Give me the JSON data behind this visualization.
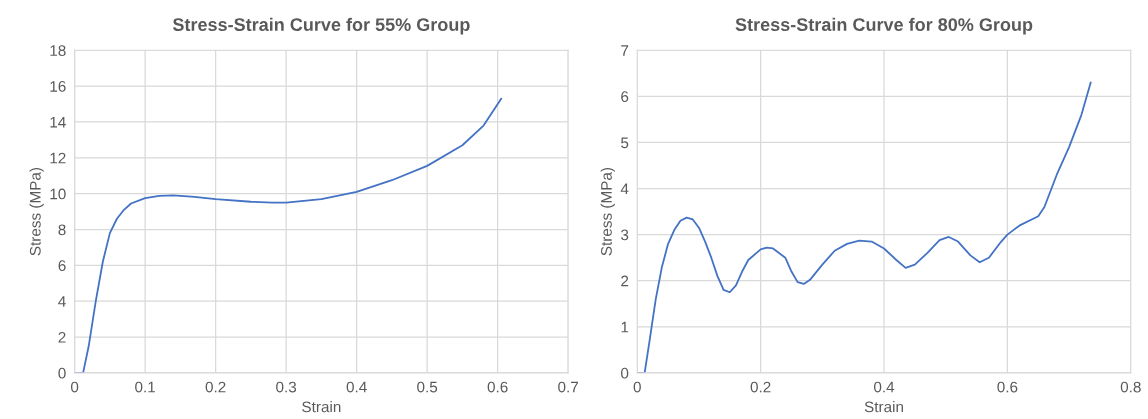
{
  "chart_data": [
    {
      "type": "line",
      "title": "Stress-Strain Curve for 55% Group",
      "xlabel": "Strain",
      "ylabel": "Stress (MPa)",
      "xlim": [
        0,
        0.7
      ],
      "xticks": [
        0,
        0.1,
        0.2,
        0.3,
        0.4,
        0.5,
        0.6,
        0.7
      ],
      "ylim": [
        0,
        18
      ],
      "yticks": [
        0,
        2,
        4,
        6,
        8,
        10,
        12,
        14,
        16,
        18
      ],
      "grid": true,
      "marker": "none",
      "line_style": "solid",
      "series": [
        {
          "color": "#4472c4",
          "x": [
            0,
            0.012,
            0.02,
            0.03,
            0.04,
            0.05,
            0.06,
            0.07,
            0.08,
            0.1,
            0.12,
            0.14,
            0.17,
            0.2,
            0.25,
            0.28,
            0.3,
            0.35,
            0.4,
            0.45,
            0.5,
            0.55,
            0.58,
            0.605
          ],
          "values": [
            0,
            0,
            1.5,
            4,
            6.2,
            7.8,
            8.6,
            9.1,
            9.45,
            9.75,
            9.88,
            9.9,
            9.82,
            9.7,
            9.55,
            9.5,
            9.5,
            9.7,
            10.1,
            10.75,
            11.55,
            12.7,
            13.8,
            15.3
          ]
        }
      ]
    },
    {
      "type": "line",
      "title": "Stress-Strain Curve for 80% Group",
      "xlabel": "Strain",
      "ylabel": "Stress (MPa)",
      "xlim": [
        0,
        0.8
      ],
      "xticks": [
        0,
        0.2,
        0.4,
        0.6,
        0.8
      ],
      "ylim": [
        0,
        7
      ],
      "yticks": [
        0,
        1,
        2,
        3,
        4,
        5,
        6,
        7
      ],
      "grid": true,
      "marker": "none",
      "line_style": "solid",
      "series": [
        {
          "color": "#4472c4",
          "x": [
            0,
            0.012,
            0.02,
            0.03,
            0.04,
            0.05,
            0.06,
            0.07,
            0.08,
            0.09,
            0.1,
            0.11,
            0.12,
            0.13,
            0.14,
            0.15,
            0.16,
            0.17,
            0.18,
            0.2,
            0.21,
            0.22,
            0.24,
            0.25,
            0.26,
            0.27,
            0.28,
            0.3,
            0.32,
            0.34,
            0.36,
            0.38,
            0.4,
            0.42,
            0.435,
            0.45,
            0.47,
            0.49,
            0.505,
            0.52,
            0.54,
            0.555,
            0.57,
            0.59,
            0.6,
            0.62,
            0.65,
            0.66,
            0.68,
            0.7,
            0.72,
            0.735
          ],
          "values": [
            0,
            0,
            0.7,
            1.6,
            2.3,
            2.8,
            3.1,
            3.3,
            3.37,
            3.33,
            3.15,
            2.85,
            2.5,
            2.1,
            1.8,
            1.75,
            1.9,
            2.2,
            2.45,
            2.68,
            2.72,
            2.7,
            2.5,
            2.2,
            1.97,
            1.93,
            2.02,
            2.35,
            2.65,
            2.8,
            2.87,
            2.85,
            2.7,
            2.45,
            2.28,
            2.35,
            2.6,
            2.88,
            2.95,
            2.85,
            2.55,
            2.4,
            2.5,
            2.85,
            3.0,
            3.2,
            3.4,
            3.6,
            4.3,
            4.9,
            5.6,
            6.3
          ]
        }
      ]
    }
  ]
}
